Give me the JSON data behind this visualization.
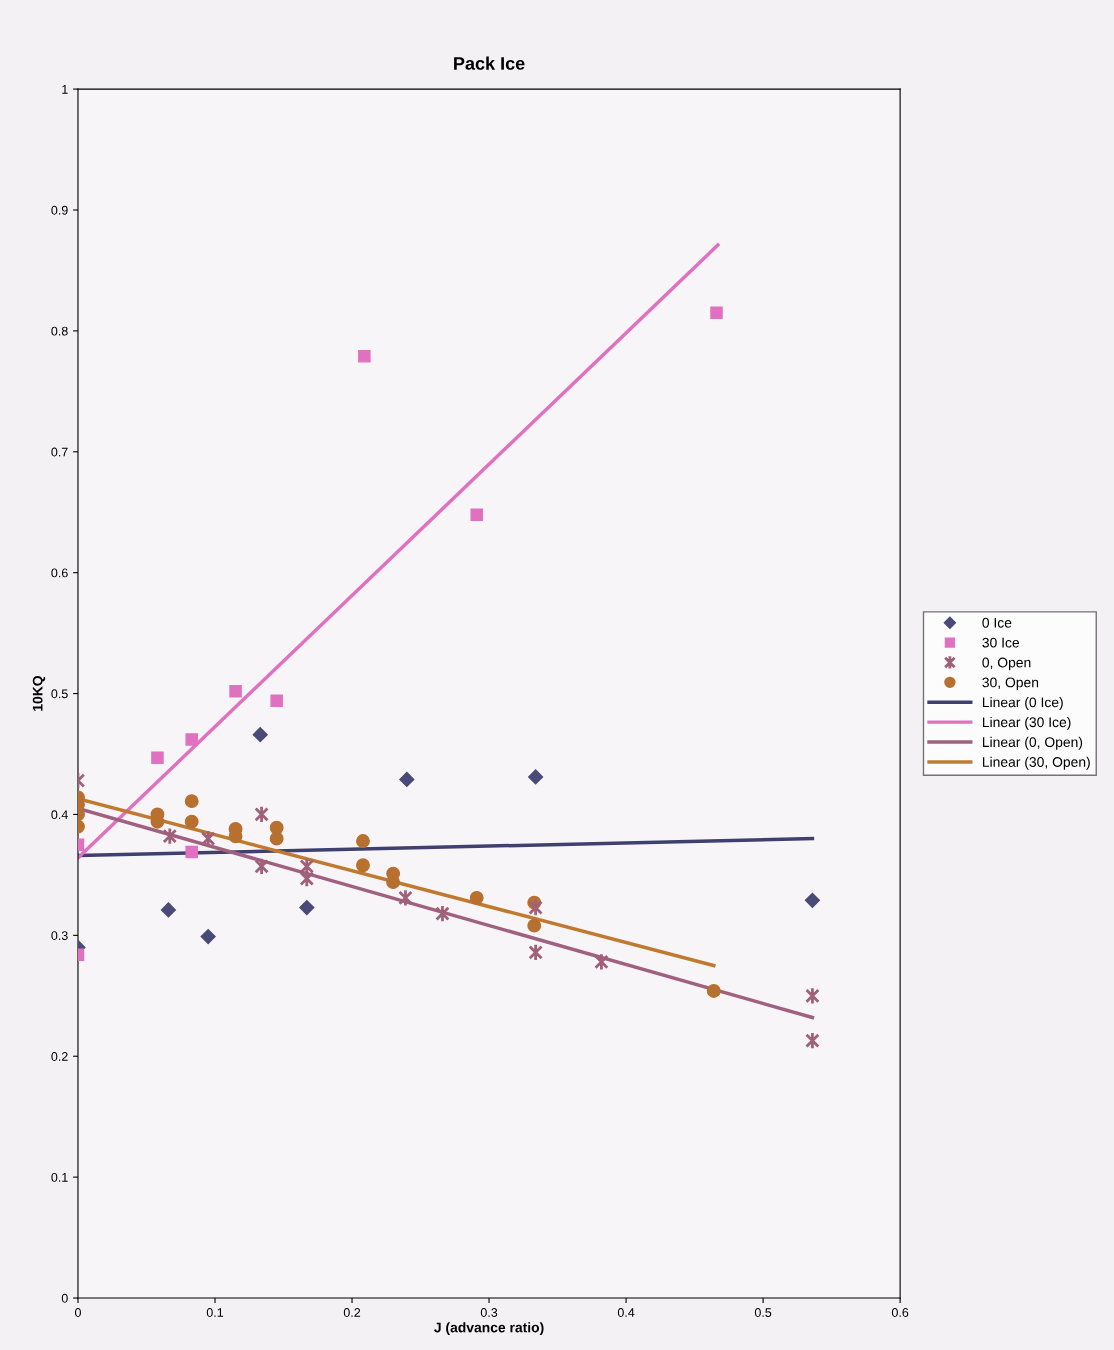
{
  "chart_data": {
    "type": "scatter",
    "title": "Pack Ice",
    "xlabel": "J (advance ratio)",
    "ylabel": "10KQ",
    "xlim": [
      0,
      0.6
    ],
    "ylim": [
      0,
      1
    ],
    "xticks": [
      0,
      0.1,
      0.2,
      0.3,
      0.4,
      0.5,
      0.6
    ],
    "yticks": [
      0,
      0.1,
      0.2,
      0.3,
      0.4,
      0.5,
      0.6,
      0.7,
      0.8,
      0.9,
      1
    ],
    "grid": false,
    "legend": "right",
    "series": [
      {
        "name": "0 Ice",
        "marker": "diamond",
        "color": "#4a4a78",
        "x": [
          0,
          0.066,
          0.095,
          0.133,
          0.167,
          0.24,
          0.334,
          0.536
        ],
        "values": [
          0.29,
          0.321,
          0.299,
          0.466,
          0.323,
          0.429,
          0.431,
          0.329
        ]
      },
      {
        "name": "30 Ice",
        "marker": "square",
        "color": "#e070c0",
        "x": [
          0,
          0,
          0.058,
          0.083,
          0.083,
          0.115,
          0.145,
          0.209,
          0.291,
          0.466
        ],
        "values": [
          0.375,
          0.284,
          0.447,
          0.462,
          0.369,
          0.502,
          0.494,
          0.779,
          0.648,
          0.815
        ]
      },
      {
        "name": "0, Open",
        "marker": "cross",
        "color": "#a0607a",
        "x": [
          0,
          0.067,
          0.095,
          0.134,
          0.134,
          0.167,
          0.167,
          0.239,
          0.266,
          0.334,
          0.334,
          0.382,
          0.536,
          0.536
        ],
        "values": [
          0.428,
          0.382,
          0.38,
          0.4,
          0.357,
          0.357,
          0.347,
          0.331,
          0.318,
          0.323,
          0.286,
          0.278,
          0.25,
          0.213
        ]
      },
      {
        "name": "30, Open",
        "marker": "circle",
        "color": "#b87030",
        "x": [
          0,
          0,
          0,
          0,
          0.058,
          0.058,
          0.083,
          0.083,
          0.115,
          0.115,
          0.145,
          0.145,
          0.208,
          0.208,
          0.23,
          0.23,
          0.291,
          0.333,
          0.333,
          0.464
        ],
        "values": [
          0.414,
          0.408,
          0.4,
          0.39,
          0.4,
          0.394,
          0.411,
          0.394,
          0.388,
          0.382,
          0.389,
          0.38,
          0.378,
          0.358,
          0.351,
          0.344,
          0.331,
          0.327,
          0.308,
          0.254
        ]
      },
      {
        "name": "Linear (0 Ice)",
        "type": "line",
        "marker": "none",
        "color": "#404070",
        "x": [
          0,
          0.536
        ],
        "values": [
          0.366,
          0.38
        ]
      },
      {
        "name": "Linear (30 Ice)",
        "type": "line",
        "marker": "none",
        "color": "#e070c0",
        "x": [
          0,
          0.467
        ],
        "values": [
          0.364,
          0.871
        ]
      },
      {
        "name": "Linear (0, Open)",
        "type": "line",
        "marker": "none",
        "color": "#a06080",
        "x": [
          0,
          0.536
        ],
        "values": [
          0.405,
          0.232
        ]
      },
      {
        "name": "Linear (30, Open)",
        "type": "line",
        "marker": "none",
        "color": "#c07a30",
        "x": [
          0,
          0.464
        ],
        "values": [
          0.413,
          0.275
        ]
      }
    ]
  }
}
